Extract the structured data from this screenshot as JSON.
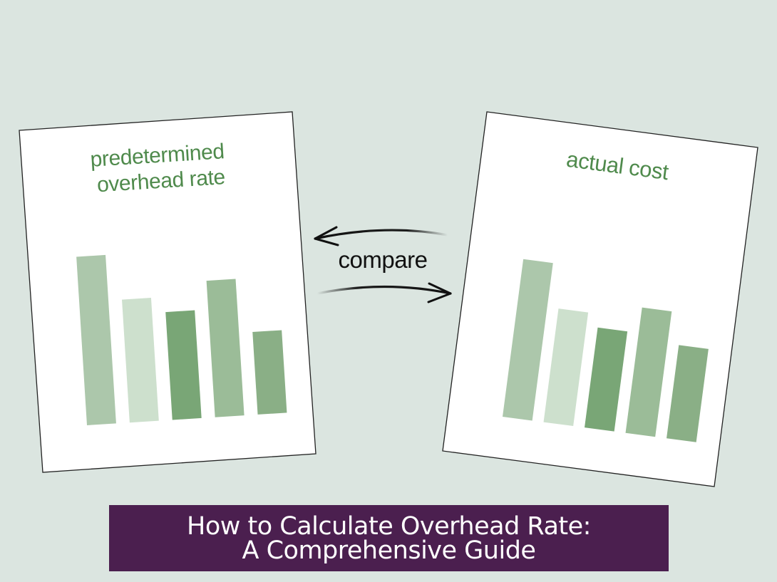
{
  "colors": {
    "background": "#dbe5e0",
    "card_fill": "#ffffff",
    "card_border": "#222222",
    "label_green": "#4f8a4c",
    "banner_fill": "#4b1f4f",
    "banner_text": "#ffffff",
    "bar_palette": [
      "#acc7ab",
      "#cde0cd",
      "#79a676",
      "#9bbc98",
      "#8aaf86"
    ]
  },
  "left_card": {
    "title_line1": "predetermined",
    "title_line2": "overhead rate",
    "bar_levels": [
      1.0,
      0.73,
      0.64,
      0.81,
      0.49
    ]
  },
  "right_card": {
    "title": "actual cost",
    "bar_levels": [
      0.93,
      0.67,
      0.59,
      0.74,
      0.55
    ]
  },
  "connector": {
    "label": "compare",
    "arrows": [
      "arrow-left-icon",
      "arrow-right-icon"
    ]
  },
  "banner": {
    "line1": "How to Calculate Overhead Rate:",
    "line2": "A Comprehensive Guide"
  }
}
